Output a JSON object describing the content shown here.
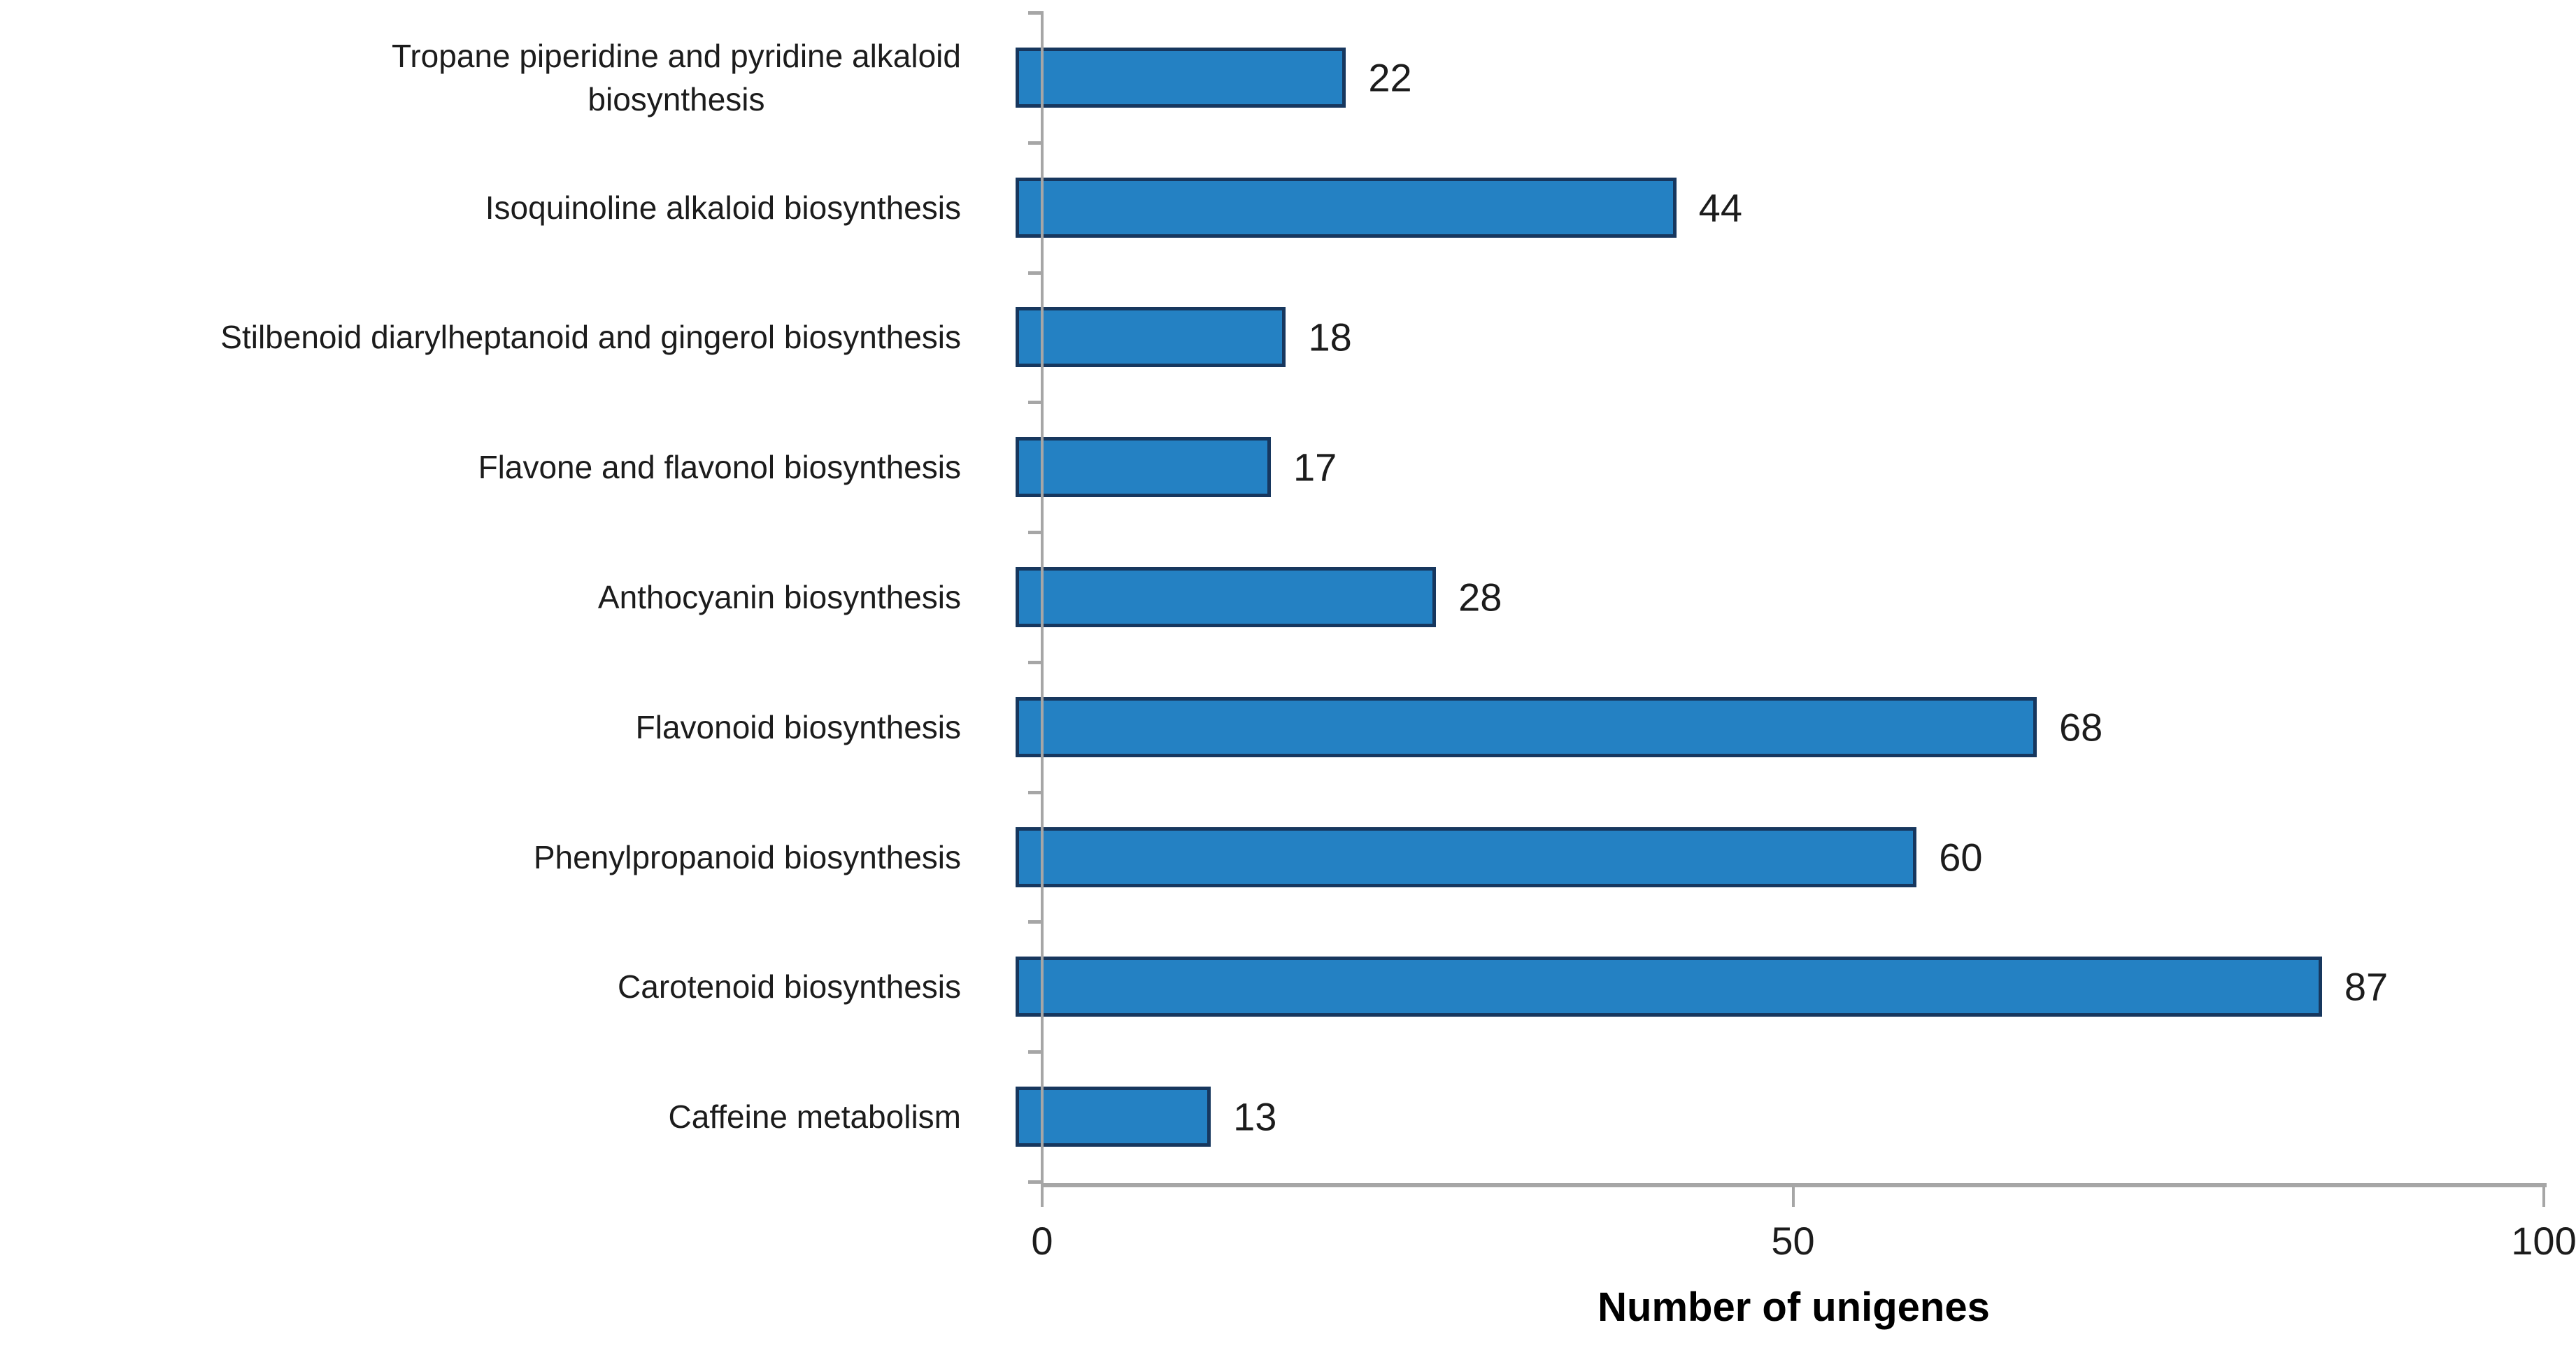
{
  "chart_data": {
    "type": "bar",
    "orientation": "horizontal",
    "title": "",
    "xlabel": "Number of unigenes",
    "ylabel": "",
    "categories": [
      "Tropane piperidine and pyridine alkaloid\nbiosynthesis",
      "Isoquinoline alkaloid biosynthesis",
      "Stilbenoid diarylheptanoid and gingerol biosynthesis",
      "Flavone and flavonol biosynthesis",
      "Anthocyanin  biosynthesis",
      "Flavonoid biosynthesis",
      "Phenylpropanoid biosynthesis",
      "Carotenoid biosynthesis",
      "Caffeine metabolism"
    ],
    "values": [
      22,
      44,
      18,
      17,
      28,
      68,
      60,
      87,
      13
    ],
    "xlim": [
      0,
      100
    ],
    "xticks": [
      0,
      50,
      100
    ],
    "grid": false,
    "legend": false,
    "bar_color": "#2481c3",
    "bar_border_color": "#17375e",
    "axis_color": "#a6a6a6",
    "text_color": "#1c1c1c"
  }
}
